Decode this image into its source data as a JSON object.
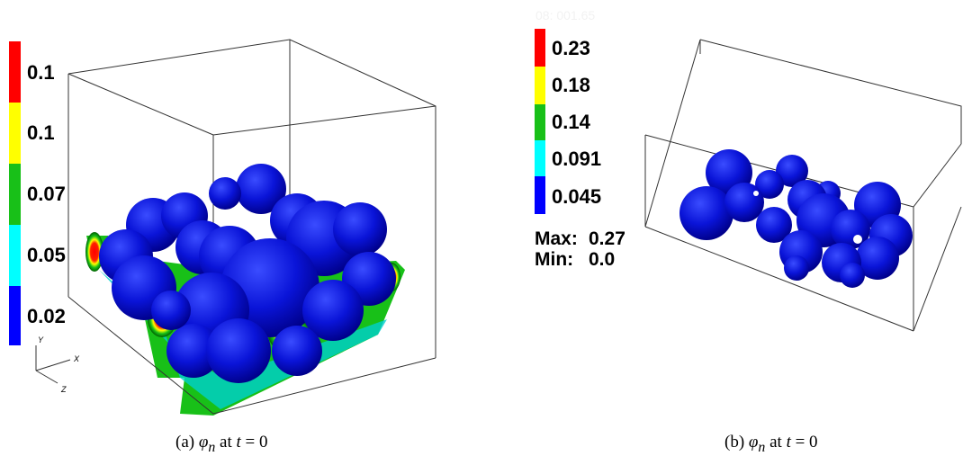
{
  "panel_a": {
    "colorbar": {
      "colors": [
        "#ff0000",
        "#ffff00",
        "#18c018",
        "#00ffff",
        "#0000ff"
      ],
      "labels": [
        "0.1",
        "0.1",
        "0.07",
        "0.05",
        "0.02"
      ]
    },
    "axes": {
      "y": "Y",
      "x": "X",
      "z": "Z"
    },
    "caption": {
      "label": "(a)",
      "symbol": "φ",
      "subscript": "n",
      "mid": "at",
      "var": "t",
      "eq": "= 0"
    }
  },
  "panel_b": {
    "faint_text": "08: 001.65",
    "colorbar": {
      "colors": [
        "#ff0000",
        "#ffff00",
        "#18c018",
        "#00ffff",
        "#0000ff"
      ],
      "labels": [
        "0.23",
        "0.18",
        "0.14",
        "0.091",
        "0.045"
      ]
    },
    "max_label": "Max:",
    "max_value": "0.27",
    "min_label": "Min:",
    "min_value": "0.0",
    "caption": {
      "label": "(b)",
      "symbol": "φ",
      "subscript": "n",
      "mid": "at",
      "var": "t",
      "eq": "= 0"
    }
  },
  "colors": {
    "sphere": "#0a14d8",
    "sphere_shade": "#00008a",
    "sphere_light": "#3040ff"
  }
}
